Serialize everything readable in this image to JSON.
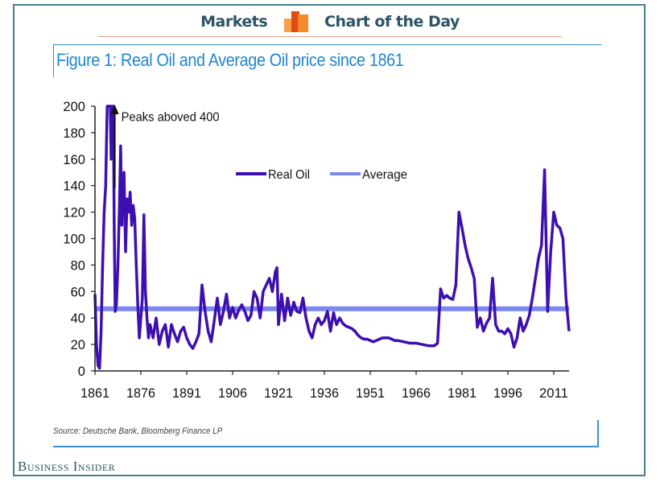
{
  "banner": {
    "left_label": "Markets",
    "right_label": "Chart of the Day",
    "logo": "bar-chart-logo-icon",
    "logo_colors": [
      "#f7a24a",
      "#e14a12",
      "#f58a2a"
    ]
  },
  "figure_title": "Figure 1: Real Oil and Average Oil price since 1861",
  "source": "Source: Deutsche Bank, Bloomberg Finance LP",
  "brand": "Business Insider",
  "colors": {
    "frame": "#4a7f91",
    "title": "#1f86cf",
    "real_oil": "#3d0fb0",
    "average": "#7b88f0"
  },
  "chart_data": {
    "type": "line",
    "title": "Figure 1: Real Oil and Average Oil price since 1861",
    "xlabel": "",
    "ylabel": "",
    "xlim": [
      1861,
      2016
    ],
    "ylim": [
      0,
      200
    ],
    "xticks": [
      1861,
      1876,
      1891,
      1906,
      1921,
      1936,
      1951,
      1966,
      1981,
      1996,
      2011
    ],
    "yticks": [
      0,
      20,
      40,
      60,
      80,
      100,
      120,
      140,
      160,
      180,
      200
    ],
    "grid": false,
    "legend": {
      "position": "top-center",
      "entries": [
        "Real Oil",
        "Average"
      ]
    },
    "annotations": [
      {
        "text": "Peaks aboved 400",
        "arrow": "up",
        "x": 1868,
        "y_from": 140,
        "y_to": 200
      }
    ],
    "series": [
      {
        "name": "Real Oil",
        "clipped_above": 200,
        "points": [
          [
            1861,
            58
          ],
          [
            1861.5,
            20
          ],
          [
            1862,
            4
          ],
          [
            1862.5,
            2
          ],
          [
            1863,
            30
          ],
          [
            1863.5,
            80
          ],
          [
            1864,
            120
          ],
          [
            1864.5,
            140
          ],
          [
            1865,
            200
          ],
          [
            1865.5,
            200
          ],
          [
            1866,
            200
          ],
          [
            1866.3,
            160
          ],
          [
            1866.6,
            200
          ],
          [
            1867,
            200
          ],
          [
            1867.3,
            110
          ],
          [
            1867.6,
            45
          ],
          [
            1868,
            50
          ],
          [
            1868.5,
            80
          ],
          [
            1869,
            125
          ],
          [
            1869.4,
            170
          ],
          [
            1869.8,
            110
          ],
          [
            1870,
            140
          ],
          [
            1870.5,
            150
          ],
          [
            1871,
            90
          ],
          [
            1871.5,
            130
          ],
          [
            1872,
            120
          ],
          [
            1872.5,
            135
          ],
          [
            1873,
            110
          ],
          [
            1873.5,
            125
          ],
          [
            1874,
            115
          ],
          [
            1874.5,
            80
          ],
          [
            1875,
            50
          ],
          [
            1875.5,
            25
          ],
          [
            1876,
            40
          ],
          [
            1876.5,
            55
          ],
          [
            1877,
            118
          ],
          [
            1877.5,
            60
          ],
          [
            1878,
            40
          ],
          [
            1878.5,
            25
          ],
          [
            1879,
            35
          ],
          [
            1880,
            25
          ],
          [
            1881,
            40
          ],
          [
            1882,
            20
          ],
          [
            1883,
            30
          ],
          [
            1884,
            35
          ],
          [
            1885,
            18
          ],
          [
            1886,
            35
          ],
          [
            1887,
            28
          ],
          [
            1888,
            22
          ],
          [
            1889,
            30
          ],
          [
            1890,
            33
          ],
          [
            1891,
            25
          ],
          [
            1892,
            20
          ],
          [
            1893,
            17
          ],
          [
            1894,
            22
          ],
          [
            1895,
            28
          ],
          [
            1896,
            65
          ],
          [
            1897,
            45
          ],
          [
            1898,
            30
          ],
          [
            1899,
            22
          ],
          [
            1900,
            38
          ],
          [
            1901,
            55
          ],
          [
            1902,
            35
          ],
          [
            1903,
            45
          ],
          [
            1904,
            58
          ],
          [
            1905,
            40
          ],
          [
            1906,
            48
          ],
          [
            1907,
            40
          ],
          [
            1908,
            46
          ],
          [
            1909,
            50
          ],
          [
            1910,
            45
          ],
          [
            1911,
            38
          ],
          [
            1912,
            42
          ],
          [
            1913,
            60
          ],
          [
            1914,
            55
          ],
          [
            1915,
            40
          ],
          [
            1916,
            60
          ],
          [
            1917,
            65
          ],
          [
            1918,
            70
          ],
          [
            1919,
            60
          ],
          [
            1920,
            75
          ],
          [
            1920.5,
            78
          ],
          [
            1921,
            35
          ],
          [
            1922,
            58
          ],
          [
            1923,
            38
          ],
          [
            1924,
            55
          ],
          [
            1925,
            42
          ],
          [
            1926,
            52
          ],
          [
            1927,
            45
          ],
          [
            1928,
            44
          ],
          [
            1929,
            55
          ],
          [
            1930,
            40
          ],
          [
            1931,
            30
          ],
          [
            1932,
            25
          ],
          [
            1933,
            35
          ],
          [
            1934,
            40
          ],
          [
            1935,
            35
          ],
          [
            1936,
            38
          ],
          [
            1937,
            45
          ],
          [
            1938,
            30
          ],
          [
            1939,
            44
          ],
          [
            1940,
            35
          ],
          [
            1941,
            40
          ],
          [
            1942,
            36
          ],
          [
            1943,
            34
          ],
          [
            1944,
            33
          ],
          [
            1945,
            32
          ],
          [
            1946,
            30
          ],
          [
            1947,
            27
          ],
          [
            1948,
            25
          ],
          [
            1949,
            24
          ],
          [
            1950,
            24
          ],
          [
            1951,
            23
          ],
          [
            1952,
            22
          ],
          [
            1953,
            23
          ],
          [
            1954,
            24
          ],
          [
            1955,
            25
          ],
          [
            1956,
            25
          ],
          [
            1957,
            25
          ],
          [
            1958,
            24
          ],
          [
            1959,
            23
          ],
          [
            1960,
            23
          ],
          [
            1962,
            22
          ],
          [
            1964,
            21
          ],
          [
            1966,
            21
          ],
          [
            1968,
            20
          ],
          [
            1970,
            19
          ],
          [
            1972,
            19
          ],
          [
            1973,
            21
          ],
          [
            1974,
            62
          ],
          [
            1975,
            55
          ],
          [
            1976,
            57
          ],
          [
            1977,
            55
          ],
          [
            1978,
            54
          ],
          [
            1979,
            65
          ],
          [
            1980,
            120
          ],
          [
            1981,
            108
          ],
          [
            1982,
            95
          ],
          [
            1983,
            85
          ],
          [
            1984,
            78
          ],
          [
            1985,
            70
          ],
          [
            1986,
            33
          ],
          [
            1987,
            40
          ],
          [
            1988,
            30
          ],
          [
            1989,
            36
          ],
          [
            1990,
            40
          ],
          [
            1991,
            70
          ],
          [
            1992,
            35
          ],
          [
            1993,
            30
          ],
          [
            1994,
            30
          ],
          [
            1995,
            28
          ],
          [
            1996,
            32
          ],
          [
            1997,
            28
          ],
          [
            1998,
            18
          ],
          [
            1999,
            25
          ],
          [
            2000,
            40
          ],
          [
            2001,
            30
          ],
          [
            2002,
            35
          ],
          [
            2003,
            42
          ],
          [
            2004,
            55
          ],
          [
            2005,
            70
          ],
          [
            2006,
            85
          ],
          [
            2007,
            95
          ],
          [
            2008,
            152
          ],
          [
            2009,
            45
          ],
          [
            2010,
            90
          ],
          [
            2011,
            120
          ],
          [
            2012,
            110
          ],
          [
            2013,
            108
          ],
          [
            2014,
            100
          ],
          [
            2015,
            55
          ],
          [
            2016,
            30
          ]
        ]
      },
      {
        "name": "Average",
        "points": [
          [
            1861,
            47
          ],
          [
            2016,
            47
          ]
        ]
      }
    ]
  }
}
